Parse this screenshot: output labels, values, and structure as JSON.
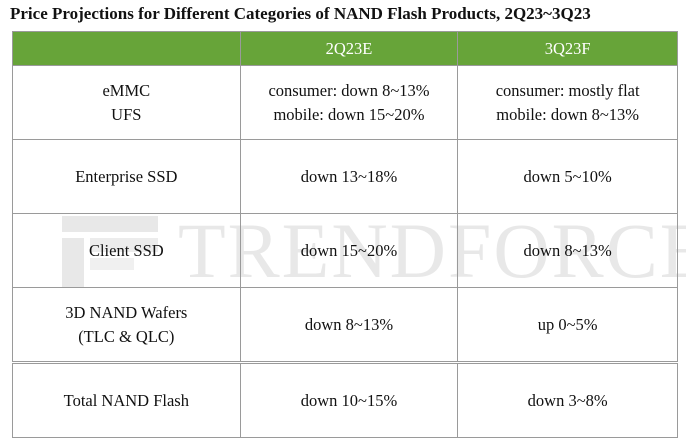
{
  "title": "Price Projections for Different Categories of NAND Flash Products, 2Q23~3Q23",
  "watermark": {
    "brand_text": "TRENDFORCE",
    "icon": "trendforce-logo-mark"
  },
  "colors": {
    "header_bg": "#67a439",
    "header_text": "#ffffff",
    "border": "#9a9a9a"
  },
  "table": {
    "headers": [
      "",
      "2Q23E",
      "3Q23F"
    ],
    "rows": [
      {
        "category_lines": [
          "eMMC",
          "UFS"
        ],
        "q2_lines": [
          "consumer: down 8~13%",
          "mobile: down 15~20%"
        ],
        "q3_lines": [
          "consumer: mostly flat",
          "mobile: down 8~13%"
        ]
      },
      {
        "category_lines": [
          "Enterprise SSD"
        ],
        "q2_lines": [
          "down 13~18%"
        ],
        "q3_lines": [
          "down 5~10%"
        ]
      },
      {
        "category_lines": [
          "Client SSD"
        ],
        "q2_lines": [
          "down 15~20%"
        ],
        "q3_lines": [
          "down 8~13%"
        ]
      },
      {
        "category_lines": [
          "3D NAND Wafers",
          "(TLC & QLC)"
        ],
        "q2_lines": [
          "down 8~13%"
        ],
        "q3_lines": [
          "up 0~5%"
        ]
      },
      {
        "category_lines": [
          "Total NAND Flash"
        ],
        "q2_lines": [
          "down 10~15%"
        ],
        "q3_lines": [
          "down 3~8%"
        ]
      }
    ]
  }
}
